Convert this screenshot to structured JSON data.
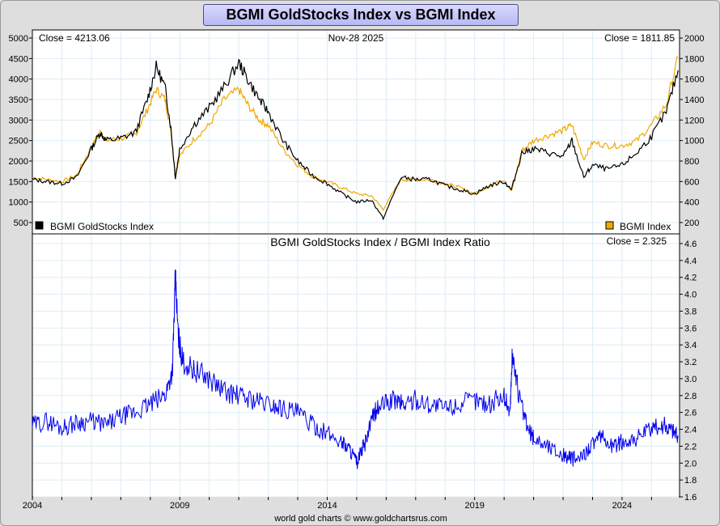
{
  "title": "BGMI GoldStocks Index vs BGMI Index",
  "footer": "world gold charts © www.goldchartsrus.com",
  "colors": {
    "goldstocks": "#000000",
    "bgmi": "#f0a800",
    "ratio": "#0000ee",
    "grid": "#dcecf4"
  },
  "chart_data": [
    {
      "type": "line",
      "date_label": "Nov-28  2025",
      "close_left": "Close = 4213.06",
      "close_right": "Close = 1811.85",
      "y_left_ticks": [
        "500",
        "1000",
        "1500",
        "2000",
        "2500",
        "3000",
        "3500",
        "4000",
        "4500",
        "5000"
      ],
      "y_left_range": [
        500,
        5000
      ],
      "y_right_ticks": [
        "200",
        "400",
        "600",
        "800",
        "1000",
        "1200",
        "1400",
        "1600",
        "1800",
        "2000"
      ],
      "y_right_range": [
        200,
        2000
      ],
      "legend_left": "BGMI GoldStocks Index",
      "legend_right": "BGMI Index",
      "grid": true,
      "series": [
        {
          "name": "BGMI GoldStocks Index",
          "axis": "left",
          "x": [
            2004.0,
            2004.5,
            2005.0,
            2005.5,
            2006.0,
            2006.3,
            2006.5,
            2007.0,
            2007.5,
            2007.9,
            2008.2,
            2008.5,
            2008.7,
            2008.85,
            2009.0,
            2009.5,
            2010.0,
            2010.5,
            2011.0,
            2011.3,
            2011.7,
            2012.0,
            2012.5,
            2013.0,
            2013.5,
            2014.0,
            2014.5,
            2015.0,
            2015.5,
            2015.9,
            2016.5,
            2017.0,
            2017.5,
            2018.0,
            2018.5,
            2019.0,
            2019.5,
            2020.0,
            2020.25,
            2020.6,
            2021.0,
            2021.5,
            2022.0,
            2022.3,
            2022.7,
            2023.0,
            2023.5,
            2024.0,
            2024.5,
            2025.0,
            2025.5,
            2025.9
          ],
          "y": [
            1550,
            1500,
            1450,
            1600,
            2300,
            2700,
            2500,
            2550,
            2700,
            3500,
            4300,
            3800,
            2800,
            1600,
            2300,
            2900,
            3300,
            3800,
            4400,
            4000,
            3500,
            3200,
            2500,
            2000,
            1650,
            1450,
            1200,
            1000,
            1050,
            600,
            1600,
            1550,
            1550,
            1400,
            1300,
            1200,
            1400,
            1500,
            1300,
            2200,
            2300,
            2200,
            2100,
            2500,
            1600,
            1900,
            1800,
            1900,
            2200,
            2600,
            3200,
            4213
          ]
        },
        {
          "name": "BGMI Index",
          "axis": "right",
          "x": [
            2004.0,
            2004.5,
            2005.0,
            2005.5,
            2006.0,
            2006.3,
            2006.5,
            2007.0,
            2007.5,
            2007.9,
            2008.2,
            2008.5,
            2008.7,
            2008.85,
            2009.0,
            2009.5,
            2010.0,
            2010.5,
            2011.0,
            2011.3,
            2011.7,
            2012.0,
            2012.5,
            2013.0,
            2013.5,
            2014.0,
            2014.5,
            2015.0,
            2015.5,
            2015.9,
            2016.5,
            2017.0,
            2017.5,
            2018.0,
            2018.5,
            2019.0,
            2019.5,
            2020.0,
            2020.25,
            2020.6,
            2021.0,
            2021.5,
            2022.0,
            2022.3,
            2022.7,
            2023.0,
            2023.5,
            2024.0,
            2024.5,
            2025.0,
            2025.5,
            2025.9
          ],
          "y": [
            640,
            620,
            600,
            660,
            940,
            1080,
            1000,
            1020,
            1060,
            1300,
            1500,
            1400,
            1100,
            650,
            850,
            1020,
            1150,
            1400,
            1500,
            1350,
            1200,
            1150,
            920,
            760,
            650,
            600,
            540,
            480,
            460,
            330,
            620,
            620,
            620,
            580,
            540,
            480,
            560,
            620,
            500,
            900,
            1000,
            1050,
            1100,
            1150,
            820,
            980,
            950,
            950,
            1000,
            1150,
            1350,
            1812
          ]
        }
      ]
    },
    {
      "type": "line",
      "title": "BGMI GoldStocks Index  /  BGMI Index Ratio",
      "close": "Close = 2.325",
      "y_ticks": [
        "1.6",
        "1.8",
        "2.0",
        "2.2",
        "2.4",
        "2.6",
        "2.8",
        "3.0",
        "3.2",
        "3.4",
        "3.6",
        "3.8",
        "4.0",
        "4.2",
        "4.4",
        "4.6"
      ],
      "y_range": [
        1.6,
        4.6
      ],
      "x_ticks": [
        "2004",
        "2009",
        "2014",
        "2019",
        "2024"
      ],
      "x_range": [
        2004,
        2025.95
      ],
      "grid": true,
      "series": [
        {
          "name": "Ratio",
          "x": [
            2004.0,
            2004.5,
            2005.0,
            2005.5,
            2006.0,
            2006.5,
            2007.0,
            2007.5,
            2008.0,
            2008.5,
            2008.75,
            2008.85,
            2008.95,
            2009.1,
            2009.5,
            2010.0,
            2010.5,
            2011.0,
            2011.5,
            2012.0,
            2012.5,
            2013.0,
            2013.5,
            2014.0,
            2014.5,
            2014.8,
            2015.0,
            2015.3,
            2015.6,
            2015.9,
            2016.3,
            2016.6,
            2017.0,
            2017.5,
            2018.0,
            2018.5,
            2019.0,
            2019.5,
            2020.0,
            2020.2,
            2020.28,
            2020.5,
            2020.8,
            2021.0,
            2021.5,
            2022.0,
            2022.3,
            2022.6,
            2022.9,
            2023.3,
            2023.7,
            2024.0,
            2024.5,
            2025.0,
            2025.4,
            2025.7,
            2025.9
          ],
          "y": [
            2.45,
            2.5,
            2.42,
            2.48,
            2.5,
            2.45,
            2.55,
            2.6,
            2.7,
            2.8,
            3.1,
            4.2,
            3.5,
            3.2,
            3.1,
            3.0,
            2.85,
            2.8,
            2.75,
            2.7,
            2.65,
            2.6,
            2.45,
            2.35,
            2.25,
            2.15,
            2.0,
            2.25,
            2.6,
            2.7,
            2.75,
            2.7,
            2.75,
            2.7,
            2.65,
            2.7,
            2.75,
            2.7,
            2.8,
            2.6,
            3.3,
            2.8,
            2.4,
            2.3,
            2.2,
            2.1,
            2.05,
            2.05,
            2.2,
            2.3,
            2.2,
            2.25,
            2.3,
            2.4,
            2.45,
            2.4,
            2.325
          ]
        }
      ]
    }
  ]
}
